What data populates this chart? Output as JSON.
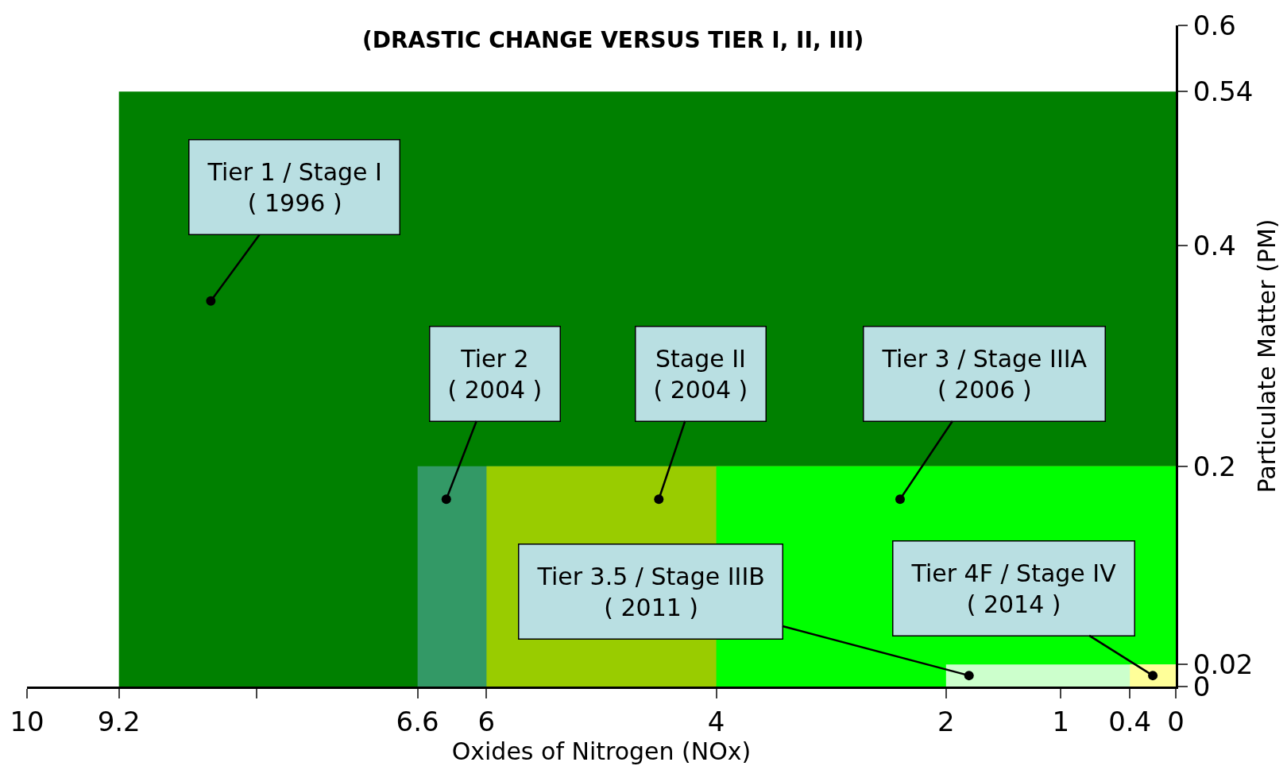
{
  "chart_data": {
    "type": "area",
    "title": "(DRASTIC CHANGE VERSUS TIER I, II, III)",
    "xlabel": "Oxides of Nitrogen (NOx)",
    "ylabel": "Particulate Matter (PM)",
    "series": [
      {
        "x": [
          9.2,
          0
        ],
        "values": [
          0.54,
          0.54
        ],
        "color": "#008000"
      },
      {
        "x": [
          6.6,
          0
        ],
        "values": [
          0.2,
          0.2
        ],
        "color": "#339966"
      },
      {
        "x": [
          6,
          0
        ],
        "values": [
          0.2,
          0.2
        ],
        "color": "#99cc00"
      },
      {
        "x": [
          4,
          0
        ],
        "values": [
          0.2,
          0.2
        ],
        "color": "#00ff00"
      },
      {
        "x": [
          2,
          0
        ],
        "values": [
          0.02,
          0.02
        ],
        "color": "#ccffcc"
      },
      {
        "x": [
          0.4,
          0
        ],
        "values": [
          0.02,
          0.02
        ],
        "color": "#ffff99"
      }
    ],
    "xlim": [
      10,
      0
    ],
    "xticks": [
      10,
      9.2,
      {
        "value": 8,
        "label": null
      },
      6.6,
      6,
      4,
      2,
      1,
      0.4,
      0
    ],
    "ylim": [
      0,
      0.6
    ],
    "yticks": [
      0,
      0.02,
      0.2,
      0.4,
      0.54,
      0.6
    ],
    "annotations": [
      {
        "text": "Tier 1 / Stage I\n( 1996 )",
        "x": 8.4,
        "y": 0.35
      },
      {
        "text": "Tier 2\n( 2004 )",
        "x": 6.35,
        "y": 0.17
      },
      {
        "text": "Stage II\n( 2004 )",
        "x": 4.5,
        "y": 0.17
      },
      {
        "text": "Tier 3 / Stage IIIA\n( 2006 )",
        "x": 2.4,
        "y": 0.17
      },
      {
        "text": "Tier 3.5 / Stage IIIB\n( 2011 )",
        "x": 1.8,
        "y": 0.01
      },
      {
        "text": "Tier 4F / Stage IV\n( 2014 )",
        "x": 0.2,
        "y": 0.01
      }
    ]
  }
}
